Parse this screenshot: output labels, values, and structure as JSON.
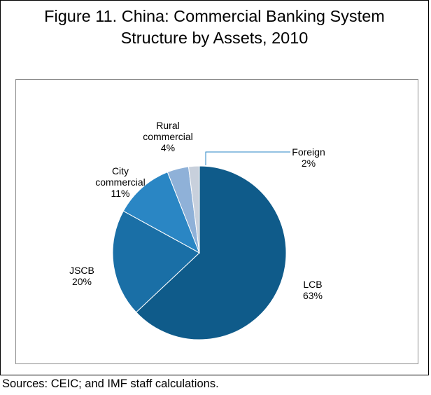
{
  "figure": {
    "title_line1": "Figure 11. China: Commercial Banking System",
    "title_line2": "Structure by Assets, 2010",
    "source": "Sources: CEIC; and IMF staff calculations."
  },
  "chart_data": {
    "type": "pie",
    "title": "Figure 11. China: Commercial Banking System Structure by Assets, 2010",
    "start_angle_deg": 0,
    "direction": "clockwise",
    "slices": [
      {
        "label_lines": [
          "LCB"
        ],
        "percent_text": "63%",
        "value": 63,
        "color": "#0f5b8a"
      },
      {
        "label_lines": [
          "JSCB"
        ],
        "percent_text": "20%",
        "value": 20,
        "color": "#1a6fa6"
      },
      {
        "label_lines": [
          "City",
          "commercial"
        ],
        "percent_text": "11%",
        "value": 11,
        "color": "#2a86c4"
      },
      {
        "label_lines": [
          "Rural",
          "commercial"
        ],
        "percent_text": "4%",
        "value": 4,
        "color": "#8fb1d8"
      },
      {
        "label_lines": [
          "Foreign"
        ],
        "percent_text": "2%",
        "value": 2,
        "color": "#c8d0dc"
      }
    ],
    "leader_line_color": "#2a86c4"
  }
}
